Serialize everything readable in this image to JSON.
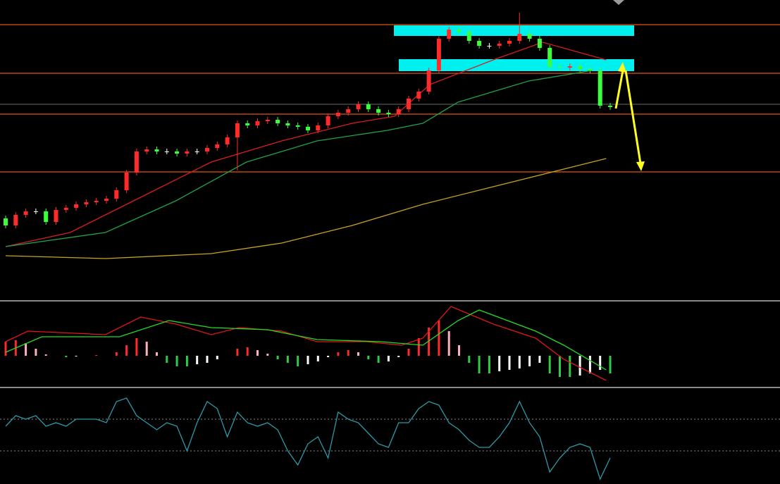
{
  "chart_data": [
    {
      "type": "candlestick",
      "xlim": [
        0,
        60
      ],
      "ylim": [
        0,
        420
      ],
      "up_color": "#ff2a2a",
      "down_color": "#3cff3c",
      "open": [
        110,
        100,
        115,
        120,
        120,
        105,
        122,
        125,
        130,
        133,
        135,
        138,
        150,
        175,
        205,
        208,
        205,
        205,
        202,
        205,
        205,
        210,
        215,
        225,
        245,
        242,
        248,
        250,
        245,
        242,
        240,
        235,
        242,
        255,
        260,
        265,
        272,
        265,
        260,
        258,
        265,
        280,
        290,
        320,
        365,
        378,
        375,
        362,
        355,
        355,
        358,
        362,
        372,
        365,
        352,
        325,
        324,
        326,
        322,
        320,
        270
      ],
      "high": [
        114,
        119,
        124,
        124,
        124,
        126,
        129,
        134,
        137,
        139,
        142,
        154,
        179,
        209,
        212,
        212,
        209,
        209,
        209,
        209,
        214,
        219,
        229,
        249,
        249,
        252,
        254,
        254,
        249,
        246,
        244,
        246,
        259,
        264,
        269,
        276,
        276,
        269,
        264,
        269,
        284,
        294,
        324,
        369,
        382,
        382,
        379,
        366,
        359,
        362,
        366,
        402,
        376,
        369,
        356,
        329,
        330,
        330,
        326,
        324,
        274
      ],
      "low": [
        96,
        96,
        111,
        116,
        101,
        101,
        118,
        121,
        126,
        129,
        131,
        134,
        146,
        171,
        201,
        201,
        201,
        198,
        198,
        201,
        201,
        206,
        211,
        178,
        238,
        238,
        244,
        241,
        238,
        236,
        231,
        231,
        238,
        251,
        256,
        261,
        261,
        256,
        254,
        254,
        261,
        276,
        286,
        316,
        361,
        371,
        358,
        351,
        351,
        351,
        354,
        358,
        361,
        348,
        321,
        320,
        320,
        318,
        316,
        266,
        264
      ],
      "close": [
        100,
        115,
        120,
        120,
        105,
        122,
        125,
        130,
        133,
        135,
        138,
        150,
        175,
        205,
        208,
        205,
        205,
        202,
        205,
        205,
        210,
        215,
        225,
        245,
        242,
        248,
        250,
        245,
        242,
        240,
        235,
        242,
        255,
        260,
        265,
        272,
        265,
        260,
        258,
        265,
        280,
        290,
        320,
        365,
        378,
        375,
        362,
        355,
        355,
        358,
        362,
        372,
        365,
        352,
        325,
        324,
        326,
        322,
        320,
        270,
        268
      ],
      "series": [
        {
          "color": "#d81e1e",
          "x": [
            0,
            6.4,
            12,
            20.4,
            27.4,
            34.4,
            38.6,
            42.1,
            48.4,
            53.3,
            59.6
          ],
          "values": [
            70,
            90,
            130,
            190,
            220,
            245,
            255,
            300,
            335,
            360,
            335
          ]
        },
        {
          "color": "#1fa34a",
          "x": [
            0,
            9.9,
            16.9,
            23.9,
            30.9,
            37.9,
            41.4,
            44.9,
            51.9,
            58.2
          ],
          "values": [
            70,
            90,
            135,
            190,
            220,
            235,
            245,
            275,
            305,
            320
          ]
        },
        {
          "color": "#c9a320",
          "x": [
            0,
            9.9,
            20.4,
            27.4,
            34.4,
            41.4,
            48.4,
            55.4,
            59.6
          ],
          "values": [
            57,
            53,
            60,
            75,
            100,
            130,
            155,
            180,
            195
          ]
        }
      ],
      "hlines": [
        {
          "value": 385,
          "color": "#e0541c"
        },
        {
          "value": 316,
          "color": "#e0541c"
        },
        {
          "value": 272,
          "color": "#555555"
        },
        {
          "value": 258,
          "color": "#e0541c"
        },
        {
          "value": 176,
          "color": "#e0541c"
        }
      ],
      "zones": [
        [
          369,
          384
        ],
        [
          319,
          336
        ]
      ],
      "zone_color": "#00f0f0"
    },
    {
      "type": "macd",
      "xlim": [
        0,
        60
      ],
      "ylim": [
        -43,
        75
      ],
      "histogram": [
        20,
        22,
        18,
        10,
        2,
        0,
        -2,
        -1,
        0,
        1,
        0,
        5,
        15,
        25,
        20,
        5,
        -10,
        -15,
        -15,
        -12,
        -10,
        -5,
        0,
        10,
        12,
        8,
        3,
        -5,
        -10,
        -15,
        -12,
        -8,
        -2,
        5,
        8,
        5,
        -5,
        -10,
        -8,
        -2,
        10,
        25,
        40,
        50,
        35,
        15,
        -10,
        -25,
        -25,
        -22,
        -20,
        -18,
        -15,
        -10,
        -25,
        -30,
        -30,
        -28,
        -25,
        -20,
        -25
      ],
      "series": [
        {
          "color": "#e01818",
          "x": [
            0,
            2.2,
            9.9,
            13.4,
            16.9,
            20.4,
            23.2,
            27.4,
            30.9,
            35.8,
            39.3,
            41.4,
            44.2,
            48.4,
            52.6,
            55.4,
            59.6
          ],
          "values": [
            20,
            35,
            30,
            55,
            45,
            30,
            40,
            35,
            20,
            20,
            15,
            25,
            70,
            45,
            25,
            -5,
            -35
          ]
        },
        {
          "color": "#22dd22",
          "x": [
            0,
            3.6,
            11.3,
            16.2,
            20.4,
            26,
            30.9,
            37.2,
            41.4,
            44.9,
            47,
            52.6,
            55.4,
            59.6
          ],
          "values": [
            5,
            27,
            27,
            50,
            40,
            37,
            23,
            20,
            15,
            50,
            65,
            35,
            15,
            -20
          ]
        }
      ]
    },
    {
      "type": "line",
      "xlim": [
        0,
        60
      ],
      "ylim": [
        0,
        135
      ],
      "color": "#2a9aa8",
      "hlines": [
        92,
        47
      ],
      "values": [
        82,
        97,
        92,
        97,
        82,
        87,
        82,
        92,
        92,
        92,
        87,
        117,
        122,
        97,
        87,
        77,
        87,
        82,
        47,
        87,
        117,
        107,
        67,
        102,
        87,
        82,
        87,
        77,
        47,
        27,
        57,
        67,
        37,
        102,
        92,
        87,
        72,
        57,
        52,
        87,
        87,
        107,
        117,
        112,
        87,
        77,
        62,
        52,
        52,
        67,
        87,
        117,
        87,
        67,
        17,
        37,
        52,
        57,
        52,
        7,
        37
      ]
    }
  ]
}
